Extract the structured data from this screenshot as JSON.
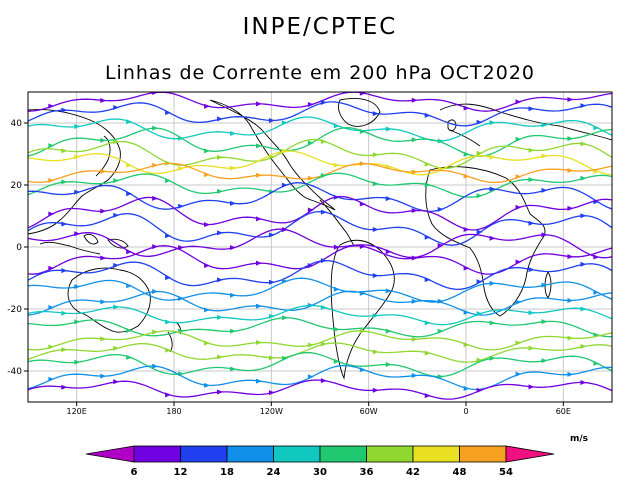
{
  "header": {
    "organization": "INPE/CPTEC",
    "title": "Linhas de Corrente em 200 hPa OCT2020"
  },
  "chart_data": {
    "type": "streamline",
    "title": "Linhas de Corrente em 200 hPa OCT2020",
    "level": "200 hPa",
    "period": "OCT2020",
    "x_ticks": [
      {
        "lon": 120,
        "label": "120E"
      },
      {
        "lon": 180,
        "label": "180"
      },
      {
        "lon": 240,
        "label": "120W"
      },
      {
        "lon": 300,
        "label": "60W"
      },
      {
        "lon": 360,
        "label": "0"
      },
      {
        "lon": 420,
        "label": "60E"
      }
    ],
    "y_ticks": [
      {
        "lat": 40,
        "label": "40"
      },
      {
        "lat": 20,
        "label": "20"
      },
      {
        "lat": 0,
        "label": "0"
      },
      {
        "lat": -20,
        "label": "-20"
      },
      {
        "lat": -40,
        "label": "-40"
      }
    ],
    "lon_range": [
      90,
      450
    ],
    "lat_range": [
      -50,
      50
    ],
    "grid": true,
    "colorbar": {
      "unit": "m/s",
      "levels": [
        6,
        12,
        18,
        24,
        30,
        36,
        42,
        48,
        54
      ],
      "labels": [
        "6",
        "12",
        "18",
        "24",
        "30",
        "36",
        "42",
        "48",
        "54"
      ],
      "colors": [
        "#b000c8",
        "#7000e0",
        "#2040f0",
        "#1090e8",
        "#10c8c0",
        "#20c870",
        "#90d830",
        "#e8e020",
        "#f8a020",
        "#f05020",
        "#e01010",
        "#f01080"
      ]
    },
    "streamlines": [
      {
        "lat": 47,
        "speed": 8,
        "amp": 2.0,
        "phase": 0.5
      },
      {
        "lat": 43,
        "speed": 14,
        "amp": 2.5,
        "phase": 1.2
      },
      {
        "lat": 38,
        "speed": 24,
        "amp": 2.5,
        "phase": 2.0
      },
      {
        "lat": 34,
        "speed": 30,
        "amp": 3.0,
        "phase": 0.7
      },
      {
        "lat": 30,
        "speed": 36,
        "amp": 3.0,
        "phase": 1.8
      },
      {
        "lat": 27,
        "speed": 42,
        "amp": 2.5,
        "phase": 2.6
      },
      {
        "lat": 24,
        "speed": 48,
        "amp": 2.0,
        "phase": 0.2
      },
      {
        "lat": 20,
        "speed": 30,
        "amp": 2.5,
        "phase": 1.0
      },
      {
        "lat": 16,
        "speed": 16,
        "amp": 3.0,
        "phase": 2.3
      },
      {
        "lat": 11,
        "speed": 10,
        "amp": 3.5,
        "phase": 0.9
      },
      {
        "lat": 6,
        "speed": 12,
        "amp": 3.5,
        "phase": 1.6
      },
      {
        "lat": 1,
        "speed": 8,
        "amp": 3.0,
        "phase": 2.9
      },
      {
        "lat": -4,
        "speed": 9,
        "amp": 3.0,
        "phase": 0.4
      },
      {
        "lat": -9,
        "speed": 13,
        "amp": 3.0,
        "phase": 1.4
      },
      {
        "lat": -14,
        "speed": 18,
        "amp": 2.5,
        "phase": 2.2
      },
      {
        "lat": -18,
        "speed": 22,
        "amp": 2.5,
        "phase": 0.6
      },
      {
        "lat": -22,
        "speed": 27,
        "amp": 2.0,
        "phase": 1.9
      },
      {
        "lat": -26,
        "speed": 32,
        "amp": 2.0,
        "phase": 2.7
      },
      {
        "lat": -30,
        "speed": 36,
        "amp": 2.0,
        "phase": 0.3
      },
      {
        "lat": -34,
        "speed": 38,
        "amp": 2.0,
        "phase": 1.1
      },
      {
        "lat": -38,
        "speed": 30,
        "amp": 2.5,
        "phase": 2.0
      },
      {
        "lat": -42,
        "speed": 20,
        "amp": 2.5,
        "phase": 0.8
      },
      {
        "lat": -46,
        "speed": 10,
        "amp": 2.0,
        "phase": 1.7
      }
    ]
  }
}
